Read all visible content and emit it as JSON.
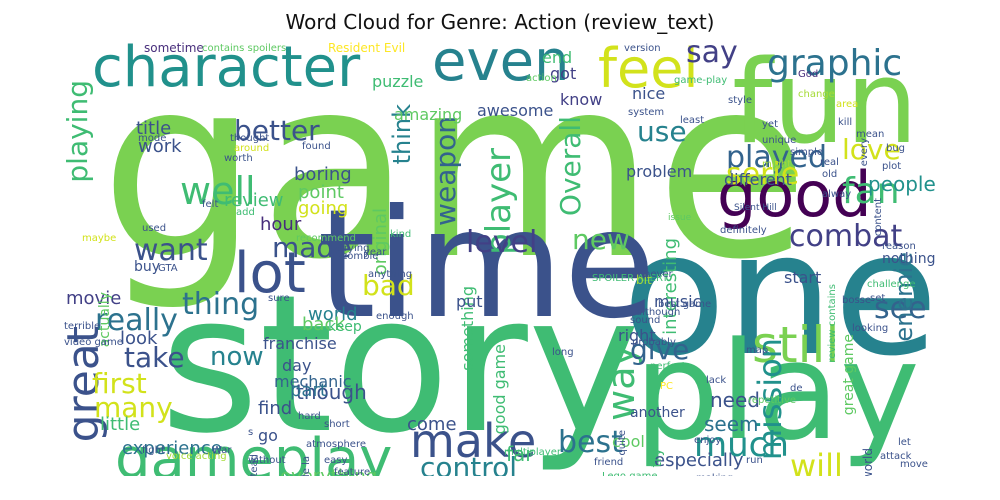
{
  "title": "Word Cloud for Genre: Action (review_text)",
  "palette": [
    "#7ad151",
    "#5ec962",
    "#3fbc73",
    "#28ae80",
    "#1fa188",
    "#21918c",
    "#26828e",
    "#2c728e",
    "#33638d",
    "#3b528b",
    "#424086",
    "#472d7b",
    "#481a6c",
    "#440154",
    "#fde725",
    "#d2e21b",
    "#a5db36"
  ],
  "words": [
    {
      "text": "game",
      "color": "#7ad151"
    },
    {
      "text": "story",
      "color": "#3fbc73"
    },
    {
      "text": "one",
      "color": "#26828e"
    },
    {
      "text": "time",
      "color": "#3b528b"
    },
    {
      "text": "play",
      "color": "#3fbc73"
    },
    {
      "text": "fun",
      "color": "#7ad151"
    },
    {
      "text": "character",
      "color": "#21918c"
    },
    {
      "text": "gameplay",
      "color": "#3fbc73"
    },
    {
      "text": "good",
      "color": "#440154"
    },
    {
      "text": "even",
      "color": "#26828e"
    },
    {
      "text": "feel",
      "color": "#d2e21b"
    },
    {
      "text": "lot",
      "color": "#3b528b"
    },
    {
      "text": "make",
      "color": "#3b528b"
    },
    {
      "text": "still",
      "color": "#7ad151"
    },
    {
      "text": "great",
      "color": "#3b528b"
    },
    {
      "text": "graphic",
      "color": "#2c728e"
    },
    {
      "text": "well",
      "color": "#3fbc73"
    },
    {
      "text": "combat",
      "color": "#424086"
    },
    {
      "text": "played",
      "color": "#33638d"
    },
    {
      "text": "really",
      "color": "#2c728e"
    },
    {
      "text": "much",
      "color": "#21918c"
    },
    {
      "text": "mission",
      "color": "#21918c"
    },
    {
      "text": "way",
      "color": "#3fbc73"
    },
    {
      "text": "better",
      "color": "#3b528b"
    },
    {
      "text": "say",
      "color": "#424086"
    },
    {
      "text": "Overall",
      "color": "#3fbc73"
    },
    {
      "text": "player",
      "color": "#3fbc73"
    },
    {
      "text": "playing",
      "color": "#3fbc73"
    },
    {
      "text": "serie",
      "color": "#d2e21b"
    },
    {
      "text": "love",
      "color": "#d2e21b"
    },
    {
      "text": "fan",
      "color": "#3fbc73"
    },
    {
      "text": "bad",
      "color": "#d2e21b"
    },
    {
      "text": "will",
      "color": "#d2e21b"
    },
    {
      "text": "best",
      "color": "#2c728e"
    },
    {
      "text": "control",
      "color": "#26828e"
    },
    {
      "text": "thing",
      "color": "#2c728e"
    },
    {
      "text": "want",
      "color": "#3b528b"
    },
    {
      "text": "made",
      "color": "#3b528b"
    },
    {
      "text": "level",
      "color": "#424086"
    },
    {
      "text": "weapon",
      "color": "#33638d"
    },
    {
      "text": "think",
      "color": "#26828e"
    },
    {
      "text": "use",
      "color": "#26828e"
    },
    {
      "text": "give",
      "color": "#33638d"
    },
    {
      "text": "new",
      "color": "#5ec962"
    },
    {
      "text": "see",
      "color": "#33638d"
    },
    {
      "text": "take",
      "color": "#3b528b"
    },
    {
      "text": "now",
      "color": "#26828e"
    },
    {
      "text": "first",
      "color": "#d2e21b"
    },
    {
      "text": "many",
      "color": "#d2e21b"
    },
    {
      "text": "people",
      "color": "#21918c"
    },
    {
      "text": "enemie",
      "color": "#2c728e"
    },
    {
      "text": "experience",
      "color": "#2c728e"
    },
    {
      "text": "everything",
      "color": "#5ec962"
    },
    {
      "text": "movie",
      "color": "#424086"
    },
    {
      "text": "original",
      "color": "#5ec962"
    },
    {
      "text": "world",
      "color": "#26828e"
    },
    {
      "text": "back",
      "color": "#5ec962"
    },
    {
      "text": "though",
      "color": "#3b528b"
    },
    {
      "text": "interesting",
      "color": "#3fbc73"
    },
    {
      "text": "need",
      "color": "#3b528b"
    },
    {
      "text": "seem",
      "color": "#2c728e"
    },
    {
      "text": "come",
      "color": "#3b528b"
    },
    {
      "text": "far",
      "color": "#3fbc73"
    },
    {
      "text": "especially",
      "color": "#3b528b"
    },
    {
      "text": "something",
      "color": "#3fbc73"
    },
    {
      "text": "good game",
      "color": "#3fbc73"
    },
    {
      "text": "mechanic",
      "color": "#33638d"
    },
    {
      "text": "part",
      "color": "#2c728e"
    },
    {
      "text": "find",
      "color": "#3b528b"
    },
    {
      "text": "little",
      "color": "#3fbc73"
    },
    {
      "text": "look",
      "color": "#3b528b"
    },
    {
      "text": "point",
      "color": "#5ec962"
    },
    {
      "text": "hour",
      "color": "#472d7b"
    },
    {
      "text": "going",
      "color": "#d2e21b"
    },
    {
      "text": "review",
      "color": "#3fbc73"
    },
    {
      "text": "work",
      "color": "#3b528b"
    },
    {
      "text": "title",
      "color": "#3b528b"
    },
    {
      "text": "boring",
      "color": "#3b528b"
    },
    {
      "text": "actually",
      "color": "#5ec962"
    },
    {
      "text": "amazing",
      "color": "#5ec962"
    },
    {
      "text": "awesome",
      "color": "#3b528b"
    },
    {
      "text": "puzzle",
      "color": "#3fbc73"
    },
    {
      "text": "end",
      "color": "#3fbc73"
    },
    {
      "text": "got",
      "color": "#424086"
    },
    {
      "text": "know",
      "color": "#424086"
    },
    {
      "text": "nice",
      "color": "#3b528b"
    },
    {
      "text": "problem",
      "color": "#3b528b"
    },
    {
      "text": "different",
      "color": "#3b528b"
    },
    {
      "text": "start",
      "color": "#3b528b"
    },
    {
      "text": "music",
      "color": "#3b528b"
    },
    {
      "text": "franchise",
      "color": "#3b528b"
    },
    {
      "text": "day",
      "color": "#3b528b"
    },
    {
      "text": "go",
      "color": "#3b528b"
    },
    {
      "text": "put",
      "color": "#3b528b"
    },
    {
      "text": "keep",
      "color": "#3fbc73"
    },
    {
      "text": "buy",
      "color": "#3b528b"
    },
    {
      "text": "cool",
      "color": "#5ec962"
    },
    {
      "text": "right",
      "color": "#3b528b"
    },
    {
      "text": "try",
      "color": "#3fbc73"
    },
    {
      "text": "another",
      "color": "#3b528b"
    },
    {
      "text": "great game",
      "color": "#5ec962"
    },
    {
      "text": "nothing",
      "color": "#3b528b"
    },
    {
      "text": "Resident Evil",
      "color": "#fde725"
    },
    {
      "text": "sometime",
      "color": "#472d7b"
    },
    {
      "text": "contains spoilers",
      "color": "#5ec962"
    },
    {
      "text": "action",
      "color": "#5ec962"
    },
    {
      "text": "version",
      "color": "#3b528b"
    },
    {
      "text": "system",
      "color": "#3b528b"
    },
    {
      "text": "game-play",
      "color": "#3fbc73"
    },
    {
      "text": "style",
      "color": "#3b528b"
    },
    {
      "text": "yet",
      "color": "#3b528b"
    },
    {
      "text": "God",
      "color": "#472d7b"
    },
    {
      "text": "change",
      "color": "#a5db36"
    },
    {
      "text": "least",
      "color": "#3b528b"
    },
    {
      "text": "area",
      "color": "#d2e21b"
    },
    {
      "text": "kill",
      "color": "#3b528b"
    },
    {
      "text": "mean",
      "color": "#3b528b"
    },
    {
      "text": "unique",
      "color": "#3b528b"
    },
    {
      "text": "simple",
      "color": "#3b528b"
    },
    {
      "text": "might",
      "color": "#a5db36"
    },
    {
      "text": "real",
      "color": "#3b528b"
    },
    {
      "text": "old",
      "color": "#3b528b"
    },
    {
      "text": "every",
      "color": "#3b528b"
    },
    {
      "text": "bug",
      "color": "#3b528b"
    },
    {
      "text": "plot",
      "color": "#3b528b"
    },
    {
      "text": "alway",
      "color": "#3b528b"
    },
    {
      "text": "Silent Hill",
      "color": "#3b528b"
    },
    {
      "text": "issue",
      "color": "#5ec962"
    },
    {
      "text": "thought",
      "color": "#3b528b"
    },
    {
      "text": "around",
      "color": "#d2e21b"
    },
    {
      "text": "worth",
      "color": "#3b528b"
    },
    {
      "text": "mode",
      "color": "#3b528b"
    },
    {
      "text": "found",
      "color": "#3b528b"
    },
    {
      "text": "felt",
      "color": "#3b528b"
    },
    {
      "text": "maybe",
      "color": "#d2e21b"
    },
    {
      "text": "recommend",
      "color": "#5ec962"
    },
    {
      "text": "trying",
      "color": "#3b528b"
    },
    {
      "text": "definitely",
      "color": "#3b528b"
    },
    {
      "text": "reason",
      "color": "#3b528b"
    },
    {
      "text": "challenge",
      "color": "#3fbc73"
    },
    {
      "text": "set",
      "color": "#3b528b"
    },
    {
      "text": "content",
      "color": "#3b528b"
    },
    {
      "text": "SPOILER ALERT",
      "color": "#3fbc73"
    },
    {
      "text": "bit",
      "color": "#a5db36"
    },
    {
      "text": "never",
      "color": "#3b528b"
    },
    {
      "text": "zombie",
      "color": "#3b528b"
    },
    {
      "text": "year",
      "color": "#3b528b"
    },
    {
      "text": "kind",
      "color": "#3fbc73"
    },
    {
      "text": "add",
      "color": "#3fbc73"
    },
    {
      "text": "used",
      "color": "#3b528b"
    },
    {
      "text": "GTA",
      "color": "#3b528b"
    },
    {
      "text": "sure",
      "color": "#3b528b"
    },
    {
      "text": "anything",
      "color": "#3b528b"
    },
    {
      "text": "enough",
      "color": "#3b528b"
    },
    {
      "text": "although",
      "color": "#3b528b"
    },
    {
      "text": "sound",
      "color": "#3b528b"
    },
    {
      "text": "bosse",
      "color": "#3b528b"
    },
    {
      "text": "review contains",
      "color": "#3fbc73"
    },
    {
      "text": "looking",
      "color": "#3b528b"
    },
    {
      "text": "probably",
      "color": "#3b528b"
    },
    {
      "text": "perfect",
      "color": "#3fbc73"
    },
    {
      "text": "lack",
      "color": "#3b528b"
    },
    {
      "text": "map",
      "color": "#3b528b"
    },
    {
      "text": "best game",
      "color": "#3b528b"
    },
    {
      "text": "terrible",
      "color": "#3b528b"
    },
    {
      "text": "video game",
      "color": "#3b528b"
    },
    {
      "text": "long",
      "color": "#3b528b"
    },
    {
      "text": "de",
      "color": "#3b528b"
    },
    {
      "text": "repetitive",
      "color": "#5ec962"
    },
    {
      "text": "hard",
      "color": "#3b528b"
    },
    {
      "text": "short",
      "color": "#3b528b"
    },
    {
      "text": "atmosphere",
      "color": "#3b528b"
    },
    {
      "text": "easy",
      "color": "#3b528b"
    },
    {
      "text": "feature",
      "color": "#3b528b"
    },
    {
      "text": "multiplayer",
      "color": "#3fbc73"
    },
    {
      "text": "quite",
      "color": "#3b528b"
    },
    {
      "text": "enjoy",
      "color": "#3b528b"
    },
    {
      "text": "friend",
      "color": "#3b528b"
    },
    {
      "text": "Lego game",
      "color": "#3fbc73"
    },
    {
      "text": "open world",
      "color": "#3b528b"
    },
    {
      "text": "let",
      "color": "#3b528b"
    },
    {
      "text": "attack",
      "color": "#3b528b"
    },
    {
      "text": "fight",
      "color": "#3b528b"
    },
    {
      "text": "without",
      "color": "#3b528b"
    },
    {
      "text": "voice acting",
      "color": "#a5db36"
    },
    {
      "text": "instead",
      "color": "#3b528b"
    },
    {
      "text": "able",
      "color": "#3b528b"
    },
    {
      "text": "making",
      "color": "#3b528b"
    },
    {
      "text": "run",
      "color": "#3b528b"
    },
    {
      "text": "move",
      "color": "#3b528b"
    },
    {
      "text": "fact",
      "color": "#3b528b"
    },
    {
      "text": "PC",
      "color": "#fde725"
    },
    {
      "text": "War",
      "color": "#3b528b"
    },
    {
      "text": "de la",
      "color": "#3b528b"
    },
    {
      "text": "s",
      "color": "#3b528b"
    }
  ]
}
